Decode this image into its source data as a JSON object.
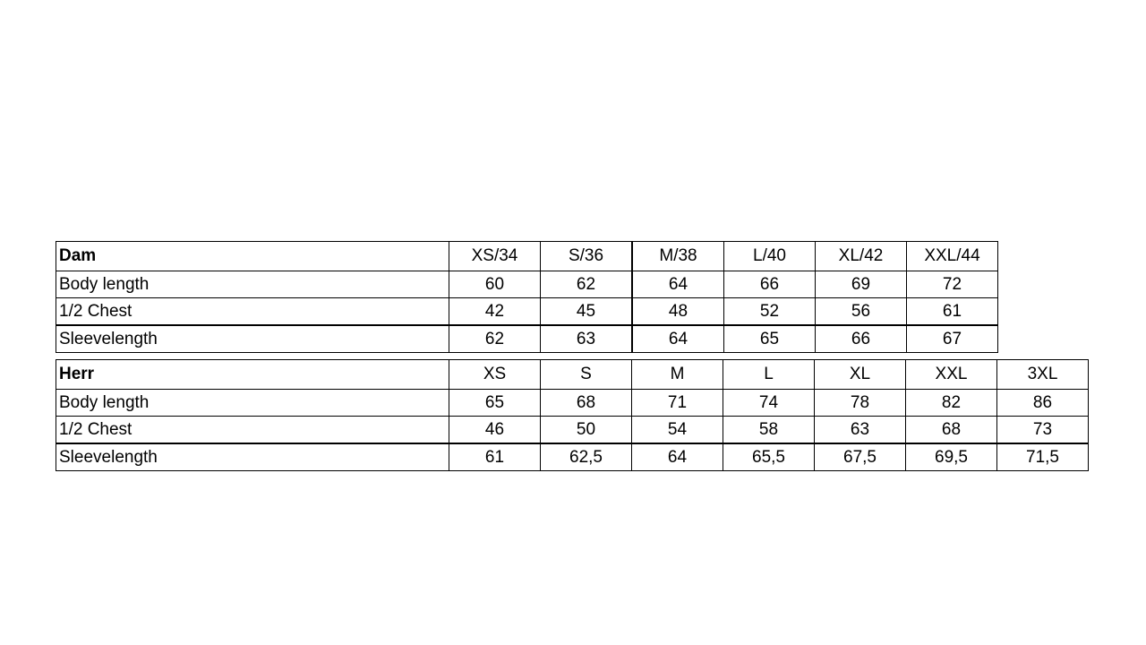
{
  "tables": [
    {
      "title": "Dam",
      "sizes": [
        "XS/34",
        "S/36",
        "M/38",
        "L/40",
        "XL/42",
        "XXL/44"
      ],
      "rows": [
        {
          "label": "Body length",
          "values": [
            "60",
            "62",
            "64",
            "66",
            "69",
            "72"
          ]
        },
        {
          "label": "1/2 Chest",
          "values": [
            "42",
            "45",
            "48",
            "52",
            "56",
            "61"
          ]
        },
        {
          "label": "Sleevelength",
          "values": [
            "62",
            "63",
            "64",
            "65",
            "66",
            "67"
          ]
        }
      ]
    },
    {
      "title": "Herr",
      "sizes": [
        "XS",
        "S",
        "M",
        "L",
        "XL",
        "XXL",
        "3XL"
      ],
      "rows": [
        {
          "label": "Body length",
          "values": [
            "65",
            "68",
            "71",
            "74",
            "78",
            "82",
            "86"
          ]
        },
        {
          "label": "1/2 Chest",
          "values": [
            "46",
            "50",
            "54",
            "58",
            "63",
            "68",
            "73"
          ]
        },
        {
          "label": "Sleevelength",
          "values": [
            "61",
            "62,5",
            "64",
            "65,5",
            "67,5",
            "69,5",
            "71,5"
          ]
        }
      ]
    }
  ]
}
